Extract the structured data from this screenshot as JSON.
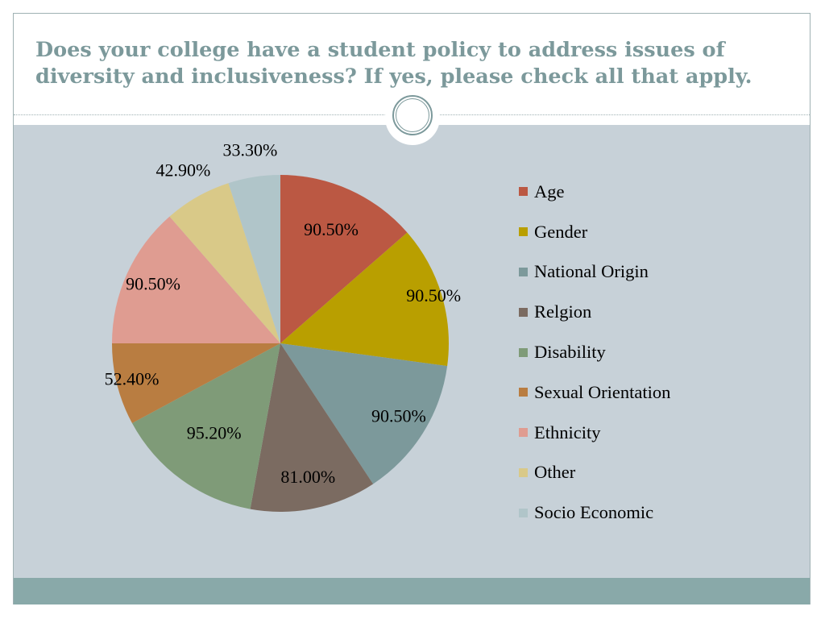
{
  "slide": {
    "title_line1": "Does your college have a student policy to address issues of",
    "title_line2": "diversity and inclusiveness? If yes, please check all that apply."
  },
  "chart_data": {
    "type": "pie",
    "categories": [
      "Age",
      "Gender",
      "National Origin",
      "Relgion",
      "Disability",
      "Sexual Orientation",
      "Ethnicity",
      "Other",
      "Socio Economic"
    ],
    "values": [
      90.5,
      90.5,
      90.5,
      81.0,
      95.2,
      52.4,
      90.5,
      42.9,
      33.3
    ],
    "data_labels": [
      "90.50%",
      "90.50%",
      "90.50%",
      "81.00%",
      "95.20%",
      "52.40%",
      "90.50%",
      "42.90%",
      "33.30%"
    ],
    "colors": [
      "#bb5843",
      "#b99f00",
      "#7c999b",
      "#7b6b61",
      "#7f9b78",
      "#b97d41",
      "#df9c91",
      "#d9c988",
      "#b0c5c9"
    ],
    "legend_position": "right",
    "start_angle": "12 o'clock",
    "direction": "clockwise"
  }
}
